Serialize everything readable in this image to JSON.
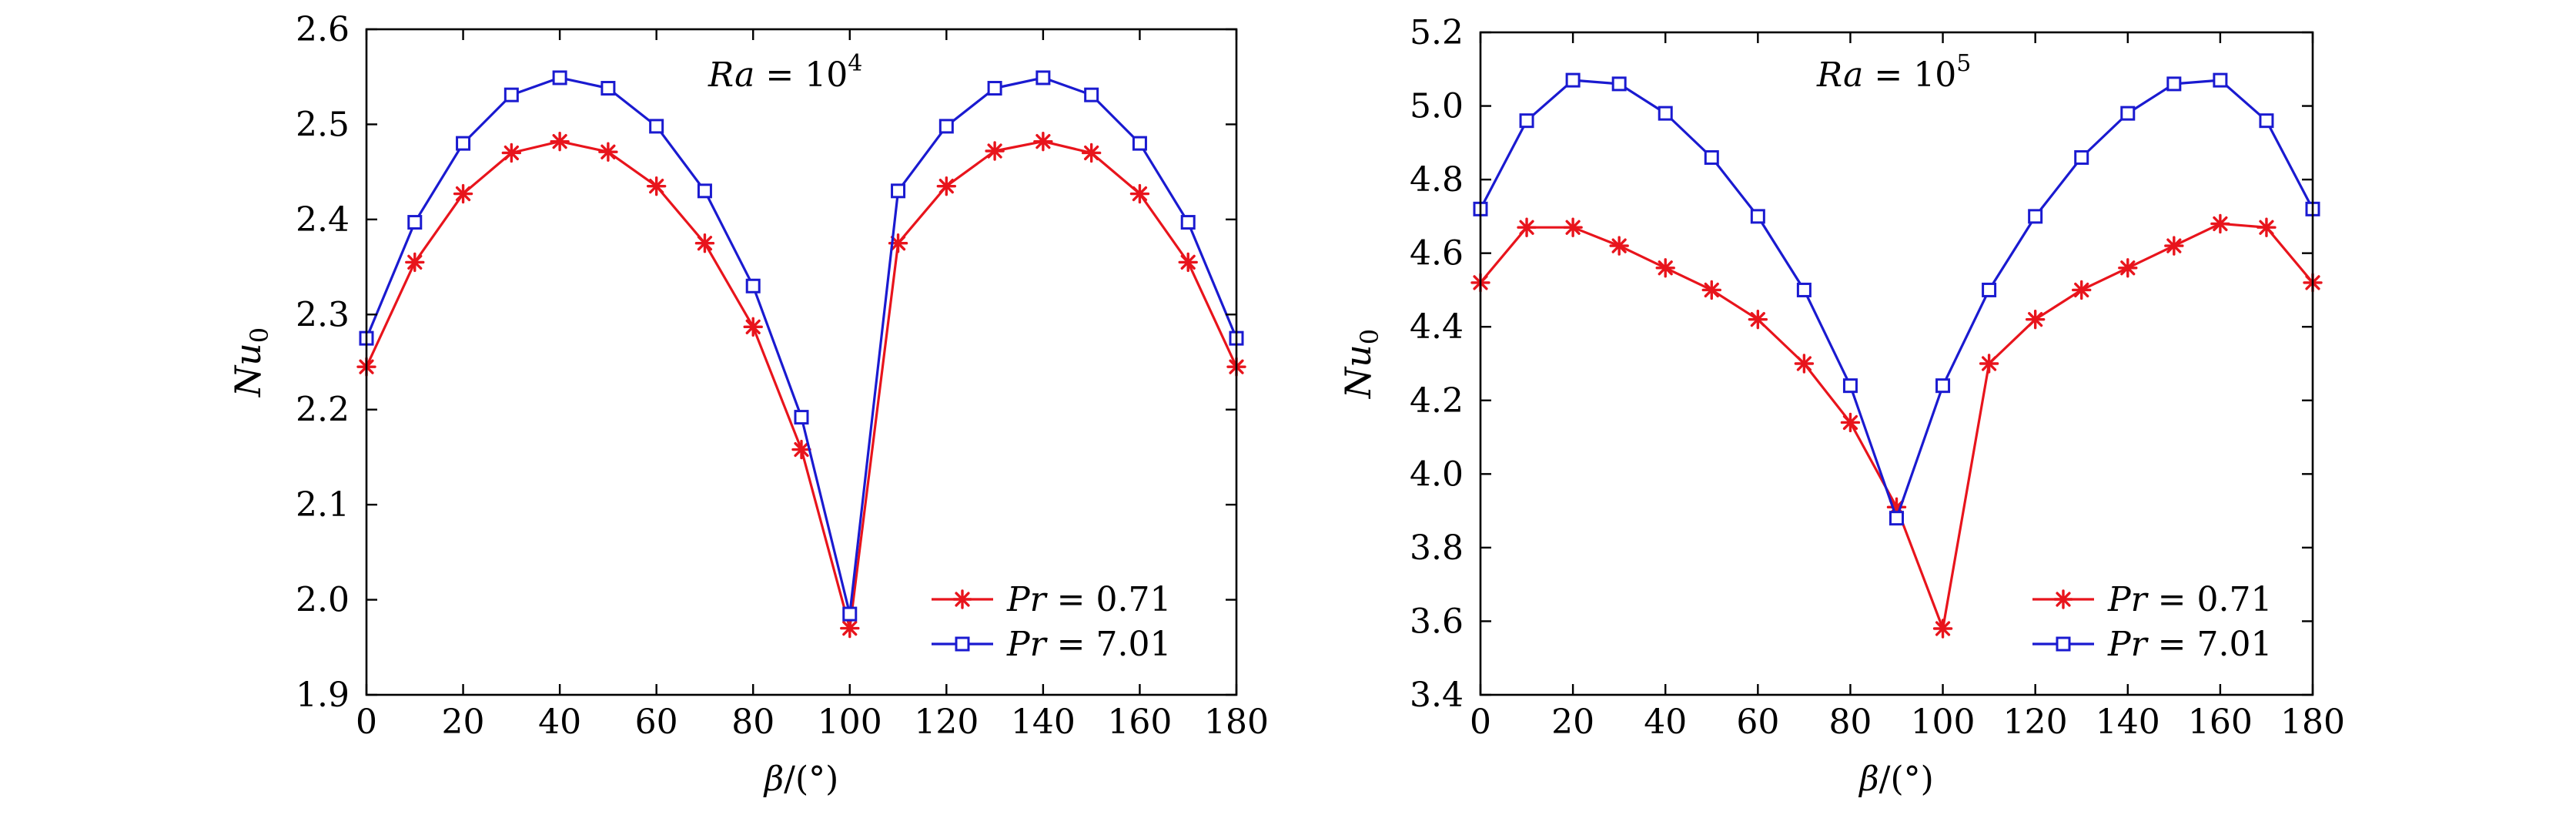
{
  "chart_data": [
    {
      "type": "line",
      "annotation": {
        "var": "Ra",
        "eq": " = 10",
        "exp": "4"
      },
      "xlabel": "β/(°)",
      "ylabel": {
        "base": "Nu",
        "sub": "0"
      },
      "xlim": [
        0,
        180
      ],
      "ylim": [
        1.9,
        2.6
      ],
      "xticks": [
        0,
        20,
        40,
        60,
        80,
        100,
        120,
        140,
        160,
        180
      ],
      "yticks": [
        "1.9",
        "2.0",
        "2.1",
        "2.2",
        "2.3",
        "2.4",
        "2.5",
        "2.6"
      ],
      "legend_position": "bottom-right",
      "x": [
        0,
        10,
        20,
        30,
        40,
        50,
        60,
        70,
        80,
        90,
        100,
        110,
        120,
        130,
        140,
        150,
        160,
        170,
        180
      ],
      "series": [
        {
          "name_var": "Pr",
          "name_val": " = 0.71",
          "color": "#e8141c",
          "marker": "asterisk",
          "values": [
            2.245,
            2.355,
            2.427,
            2.47,
            2.482,
            2.471,
            2.435,
            2.375,
            2.287,
            2.158,
            1.97,
            2.375,
            2.435,
            2.472,
            2.482,
            2.47,
            2.427,
            2.355,
            2.245
          ]
        },
        {
          "name_var": "Pr",
          "name_val": " = 7.01",
          "color": "#1a1ad0",
          "marker": "square",
          "values": [
            2.275,
            2.397,
            2.48,
            2.531,
            2.549,
            2.538,
            2.498,
            2.43,
            2.33,
            2.192,
            1.985,
            2.43,
            2.498,
            2.538,
            2.549,
            2.531,
            2.48,
            2.397,
            2.275
          ]
        }
      ]
    },
    {
      "type": "line",
      "annotation": {
        "var": "Ra",
        "eq": " = 10",
        "exp": "5"
      },
      "xlabel": "β/(°)",
      "ylabel": {
        "base": "Nu",
        "sub": "0"
      },
      "xlim": [
        0,
        180
      ],
      "ylim": [
        3.4,
        5.2
      ],
      "xticks": [
        0,
        20,
        40,
        60,
        80,
        100,
        120,
        140,
        160,
        180
      ],
      "yticks": [
        "3.4",
        "3.6",
        "3.8",
        "4.0",
        "4.2",
        "4.4",
        "4.6",
        "4.8",
        "5.0",
        "5.2"
      ],
      "legend_position": "bottom-right",
      "x": [
        0,
        10,
        20,
        30,
        40,
        50,
        60,
        70,
        80,
        90,
        100,
        110,
        120,
        130,
        140,
        150,
        160,
        170,
        180
      ],
      "series": [
        {
          "name_var": "Pr",
          "name_val": " = 0.71",
          "color": "#e8141c",
          "marker": "asterisk",
          "values": [
            4.52,
            4.67,
            4.67,
            4.62,
            4.56,
            4.5,
            4.42,
            4.3,
            4.14,
            3.91,
            3.58,
            4.3,
            4.42,
            4.5,
            4.56,
            4.62,
            4.68,
            4.67,
            4.52
          ]
        },
        {
          "name_var": "Pr",
          "name_val": " = 7.01",
          "color": "#1a1ad0",
          "marker": "square",
          "values": [
            4.72,
            4.96,
            5.07,
            5.06,
            4.98,
            4.86,
            4.7,
            4.5,
            4.24,
            3.88,
            4.24,
            4.5,
            4.7,
            4.86,
            4.98,
            5.06,
            5.07,
            4.96,
            4.72
          ]
        }
      ]
    }
  ]
}
